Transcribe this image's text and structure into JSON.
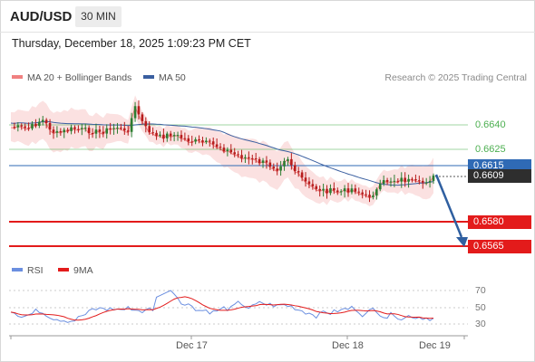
{
  "header": {
    "symbol": "AUD/USD",
    "timeframe_button": "30 MIN"
  },
  "datetime": "Thursday, December 18, 2025 1:09:23 PM CET",
  "legend": {
    "ma20": {
      "label": "MA 20 + Bollinger Bands",
      "color": "#f08080"
    },
    "ma50": {
      "label": "MA 50",
      "color": "#3a5fa0"
    }
  },
  "research_note": "Research © 2025 Trading Central",
  "levels": {
    "l6640": {
      "label": "0.6640",
      "color": "#4caf50"
    },
    "l6625": {
      "label": "0.6625",
      "color": "#4caf50"
    },
    "l6615": {
      "label": "0.6615",
      "color": "#2f6ab5"
    },
    "l6609": {
      "label": "0.6609",
      "color": "#333333"
    },
    "l6580": {
      "label": "0.6580",
      "color": "#e31b1b"
    },
    "l6565": {
      "label": "0.6565",
      "color": "#e31b1b"
    }
  },
  "rsi_legend": {
    "rsi": {
      "label": "RSI",
      "color": "#6b8fe0"
    },
    "ma9": {
      "label": "9MA",
      "color": "#e31b1b"
    }
  },
  "rsi_ticks": [
    "70",
    "50",
    "30"
  ],
  "x_axis": [
    "Dec 17",
    "Dec 18",
    "Dec 19"
  ],
  "forecast_arrow_color": "#2f5fa0"
}
